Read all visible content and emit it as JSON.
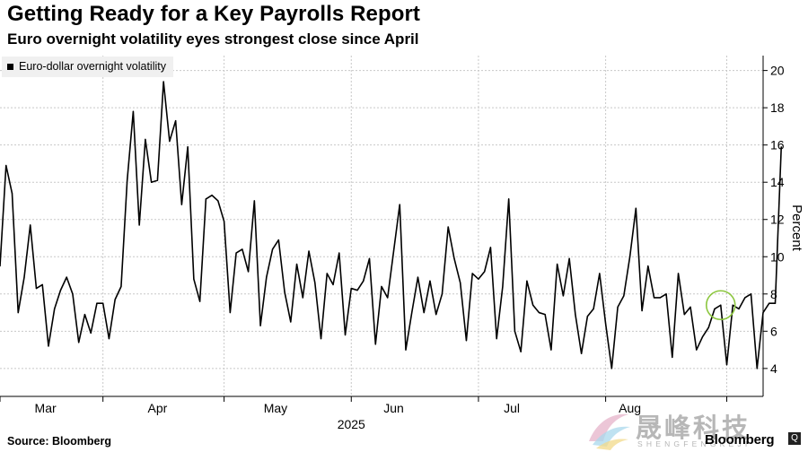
{
  "chart_data": {
    "type": "line",
    "title": "Getting Ready for a Key Payrolls Report",
    "subtitle": "Euro overnight volatility eyes strongest close since April",
    "series_name": "Euro-dollar overnight volatility",
    "ylabel": "Percent",
    "ylim": [
      2.5,
      20.8
    ],
    "yticks": [
      4,
      6,
      8,
      10,
      12,
      14,
      16,
      18,
      20
    ],
    "xlim": [
      0,
      126
    ],
    "month_labels": [
      "Mar",
      "Apr",
      "May",
      "Jun",
      "Jul",
      "Aug"
    ],
    "month_label_x": [
      7.5,
      26,
      45.5,
      65,
      84.5,
      104
    ],
    "month_boundaries": [
      0,
      17,
      37,
      58,
      79,
      100,
      120
    ],
    "year_label": "2025",
    "year_label_x": 58,
    "highlight_index": 119,
    "values": [
      9.5,
      14.9,
      13.4,
      7.0,
      8.9,
      11.7,
      8.3,
      8.5,
      5.2,
      7.2,
      8.2,
      8.9,
      8.0,
      5.4,
      6.9,
      5.9,
      7.5,
      7.5,
      5.6,
      7.7,
      8.4,
      14.1,
      17.8,
      11.7,
      16.3,
      14.0,
      14.1,
      19.4,
      16.2,
      17.3,
      12.8,
      15.9,
      8.8,
      7.6,
      13.1,
      13.3,
      13.0,
      11.9,
      7.0,
      10.2,
      10.4,
      9.2,
      13.0,
      6.3,
      8.9,
      10.4,
      10.9,
      8.1,
      6.5,
      9.6,
      7.8,
      10.3,
      8.6,
      5.6,
      9.1,
      8.5,
      10.2,
      5.8,
      8.3,
      8.2,
      8.7,
      9.9,
      5.3,
      8.4,
      7.8,
      10.3,
      12.8,
      5.0,
      7.0,
      8.9,
      7.0,
      8.7,
      6.9,
      8.0,
      11.6,
      9.9,
      8.6,
      5.5,
      9.1,
      8.8,
      9.2,
      10.5,
      5.6,
      8.4,
      13.1,
      6.0,
      4.9,
      8.7,
      7.4,
      7.0,
      6.9,
      5.0,
      9.6,
      7.9,
      9.9,
      6.9,
      4.8,
      6.8,
      7.2,
      9.1,
      6.4,
      4.0,
      7.3,
      7.9,
      10.0,
      12.6,
      7.1,
      9.5,
      7.8,
      7.8,
      8.0,
      4.6,
      9.1,
      6.9,
      7.3,
      5.0,
      5.7,
      6.2,
      7.2,
      7.4,
      4.2,
      7.4,
      7.2,
      7.8,
      8.0,
      4.0,
      7.0,
      7.5,
      7.5,
      15.9
    ]
  },
  "footer": {
    "source": "Source: Bloomberg",
    "brand": "Bloomberg"
  },
  "watermark": {
    "cn": "晟峰科技",
    "en": "SHENGFENGKEJI",
    "badge": "Q"
  },
  "colors": {
    "line": "#000000",
    "grid": "#c8c8c8",
    "highlight": "#8cc63f"
  }
}
